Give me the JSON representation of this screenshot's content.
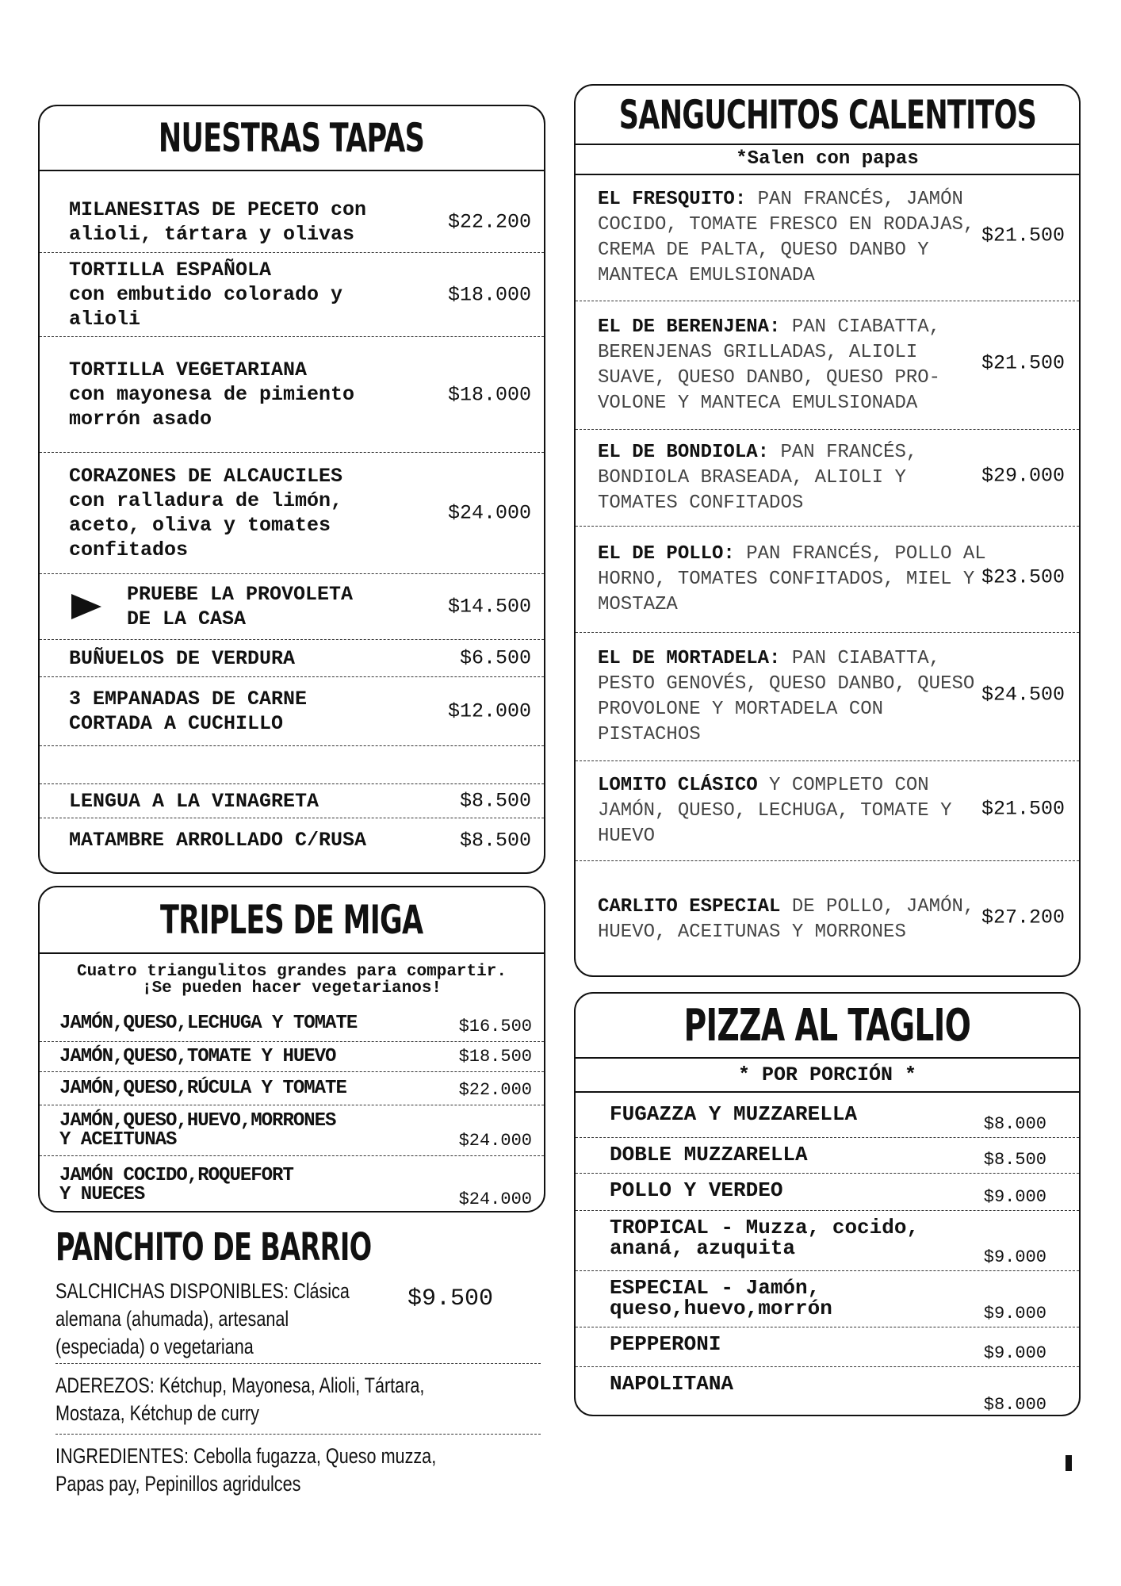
{
  "tapas": {
    "title": "NUESTRAS TAPAS",
    "items": [
      {
        "lines": [
          "MILANESITAS DE PECETO con",
          "alioli, tártara y olivas"
        ],
        "price": "$22.200"
      },
      {
        "lines": [
          "TORTILLA ESPAÑOLA",
          "con embutido colorado y",
          "alioli"
        ],
        "price": "$18.000"
      },
      {
        "lines": [
          "TORTILLA VEGETARIANA",
          "con mayonesa de pimiento",
          "morrón asado"
        ],
        "price": "$18.000"
      },
      {
        "lines": [
          "CORAZONES DE ALCAUCILES",
          "con ralladura de limón,",
          "aceto, oliva y tomates",
          "confitados"
        ],
        "price": "$24.000"
      },
      {
        "lines": [
          "PRUEBE LA PROVOLETA",
          "DE LA CASA"
        ],
        "price": "$14.500"
      },
      {
        "lines": [
          "BUÑUELOS DE VERDURA"
        ],
        "price": "$6.500"
      },
      {
        "lines": [
          "3 EMPANADAS DE CARNE",
          "CORTADA A CUCHILLO"
        ],
        "price": "$12.000"
      },
      {
        "lines": [
          "LENGUA A LA VINAGRETA"
        ],
        "price": "$8.500"
      },
      {
        "lines": [
          "MATAMBRE ARROLLADO C/RUSA"
        ],
        "price": "$8.500"
      }
    ]
  },
  "sanguchitos": {
    "title": "SANGUCHITOS CALENTITOS",
    "subtitle": "*Salen con papas",
    "items": [
      {
        "name": "EL FRESQUITO:",
        "description": "PAN FRANCÉS, JAMÓN COCIDO, TOMATE FRESCO EN RODAJAS, CREMA DE PALTA, QUESO DANBO Y MANTECA EMULSIONADA",
        "price": "$21.500"
      },
      {
        "name": "EL DE BERENJENA:",
        "description": "PAN CIABATTA, BERENJENAS GRILLADAS, ALIOLI SUAVE, QUESO DANBO, QUESO PRO-VOLONE Y MANTECA EMULSIONADA",
        "price": "$21.500"
      },
      {
        "name": "EL DE BONDIOLA:",
        "description": "PAN FRANCÉS, BONDIOLA BRASEADA, ALIOLI Y TOMATES CONFITADOS",
        "price": "$29.000"
      },
      {
        "name": "EL DE POLLO:",
        "description": "PAN FRANCÉS, POLLO AL HORNO, TOMATES CONFITADOS, MIEL Y MOSTAZA",
        "price": "$23.500"
      },
      {
        "name": "EL DE MORTADELA:",
        "description": "PAN CIABATTA, PESTO GENOVÉS, QUESO DANBO, QUESO PROVOLONE Y MORTADELA CON PISTACHOS",
        "price": "$24.500"
      },
      {
        "name": "LOMITO CLÁSICO",
        "description": "Y COMPLETO CON JAMÓN, QUESO, LECHUGA, TOMATE Y HUEVO",
        "price": "$21.500"
      },
      {
        "name": "CARLITO ESPECIAL",
        "description": "DE POLLO, JAMÓN, HUEVO, ACEITUNAS Y MORRONES",
        "price": "$27.200"
      }
    ]
  },
  "triples": {
    "title": "TRIPLES DE MIGA",
    "subtitle": [
      "Cuatro triangulitos grandes para compartir.",
      "¡Se pueden hacer vegetarianos!"
    ],
    "items": [
      {
        "lines": [
          "JAMÓN,QUESO,LECHUGA Y TOMATE"
        ],
        "price": "$16.500"
      },
      {
        "lines": [
          "JAMÓN,QUESO,TOMATE Y HUEVO"
        ],
        "price": "$18.500"
      },
      {
        "lines": [
          "JAMÓN,QUESO,RÚCULA Y TOMATE"
        ],
        "price": "$22.000"
      },
      {
        "lines": [
          "JAMÓN,QUESO,HUEVO,MORRONES",
          "Y ACEITUNAS"
        ],
        "price": "$24.000"
      },
      {
        "lines": [
          "JAMÓN COCIDO,ROQUEFORT",
          "Y NUECES"
        ],
        "price": "$24.000"
      }
    ]
  },
  "panchito": {
    "title": "PANCHITO DE BARRIO",
    "rows": [
      {
        "lines": [
          "SALCHICHAS DISPONIBLES: Clásica",
          "alemana (ahumada), artesanal",
          "(especiada) o vegetariana"
        ],
        "price": "$9.500"
      },
      {
        "lines": [
          "ADEREZOS: Kétchup, Mayonesa, Alioli, Tártara,",
          "Mostaza, Kétchup de curry"
        ]
      },
      {
        "lines": [
          "INGREDIENTES: Cebolla fugazza, Queso muzza,",
          "Papas pay, Pepinillos agridulces"
        ]
      }
    ]
  },
  "pizza": {
    "title": "PIZZA AL TAGLIO",
    "subtitle": "* POR PORCIÓN *",
    "items": [
      {
        "lines": [
          "FUGAZZA Y MUZZARELLA"
        ],
        "price": "$8.000"
      },
      {
        "lines": [
          "DOBLE MUZZARELLA"
        ],
        "price": "$8.500"
      },
      {
        "lines": [
          "POLLO Y VERDEO"
        ],
        "price": "$9.000"
      },
      {
        "lines": [
          "TROPICAL - Muzza, cocido,",
          "ananá, azuquita"
        ],
        "price": "$9.000"
      },
      {
        "lines": [
          "ESPECIAL - Jamón,",
          "queso,huevo,morrón"
        ],
        "price": "$9.000"
      },
      {
        "lines": [
          "PEPPERONI"
        ],
        "price": "$9.000"
      },
      {
        "lines": [
          "NAPOLITANA"
        ],
        "price": "$8.000"
      }
    ]
  }
}
